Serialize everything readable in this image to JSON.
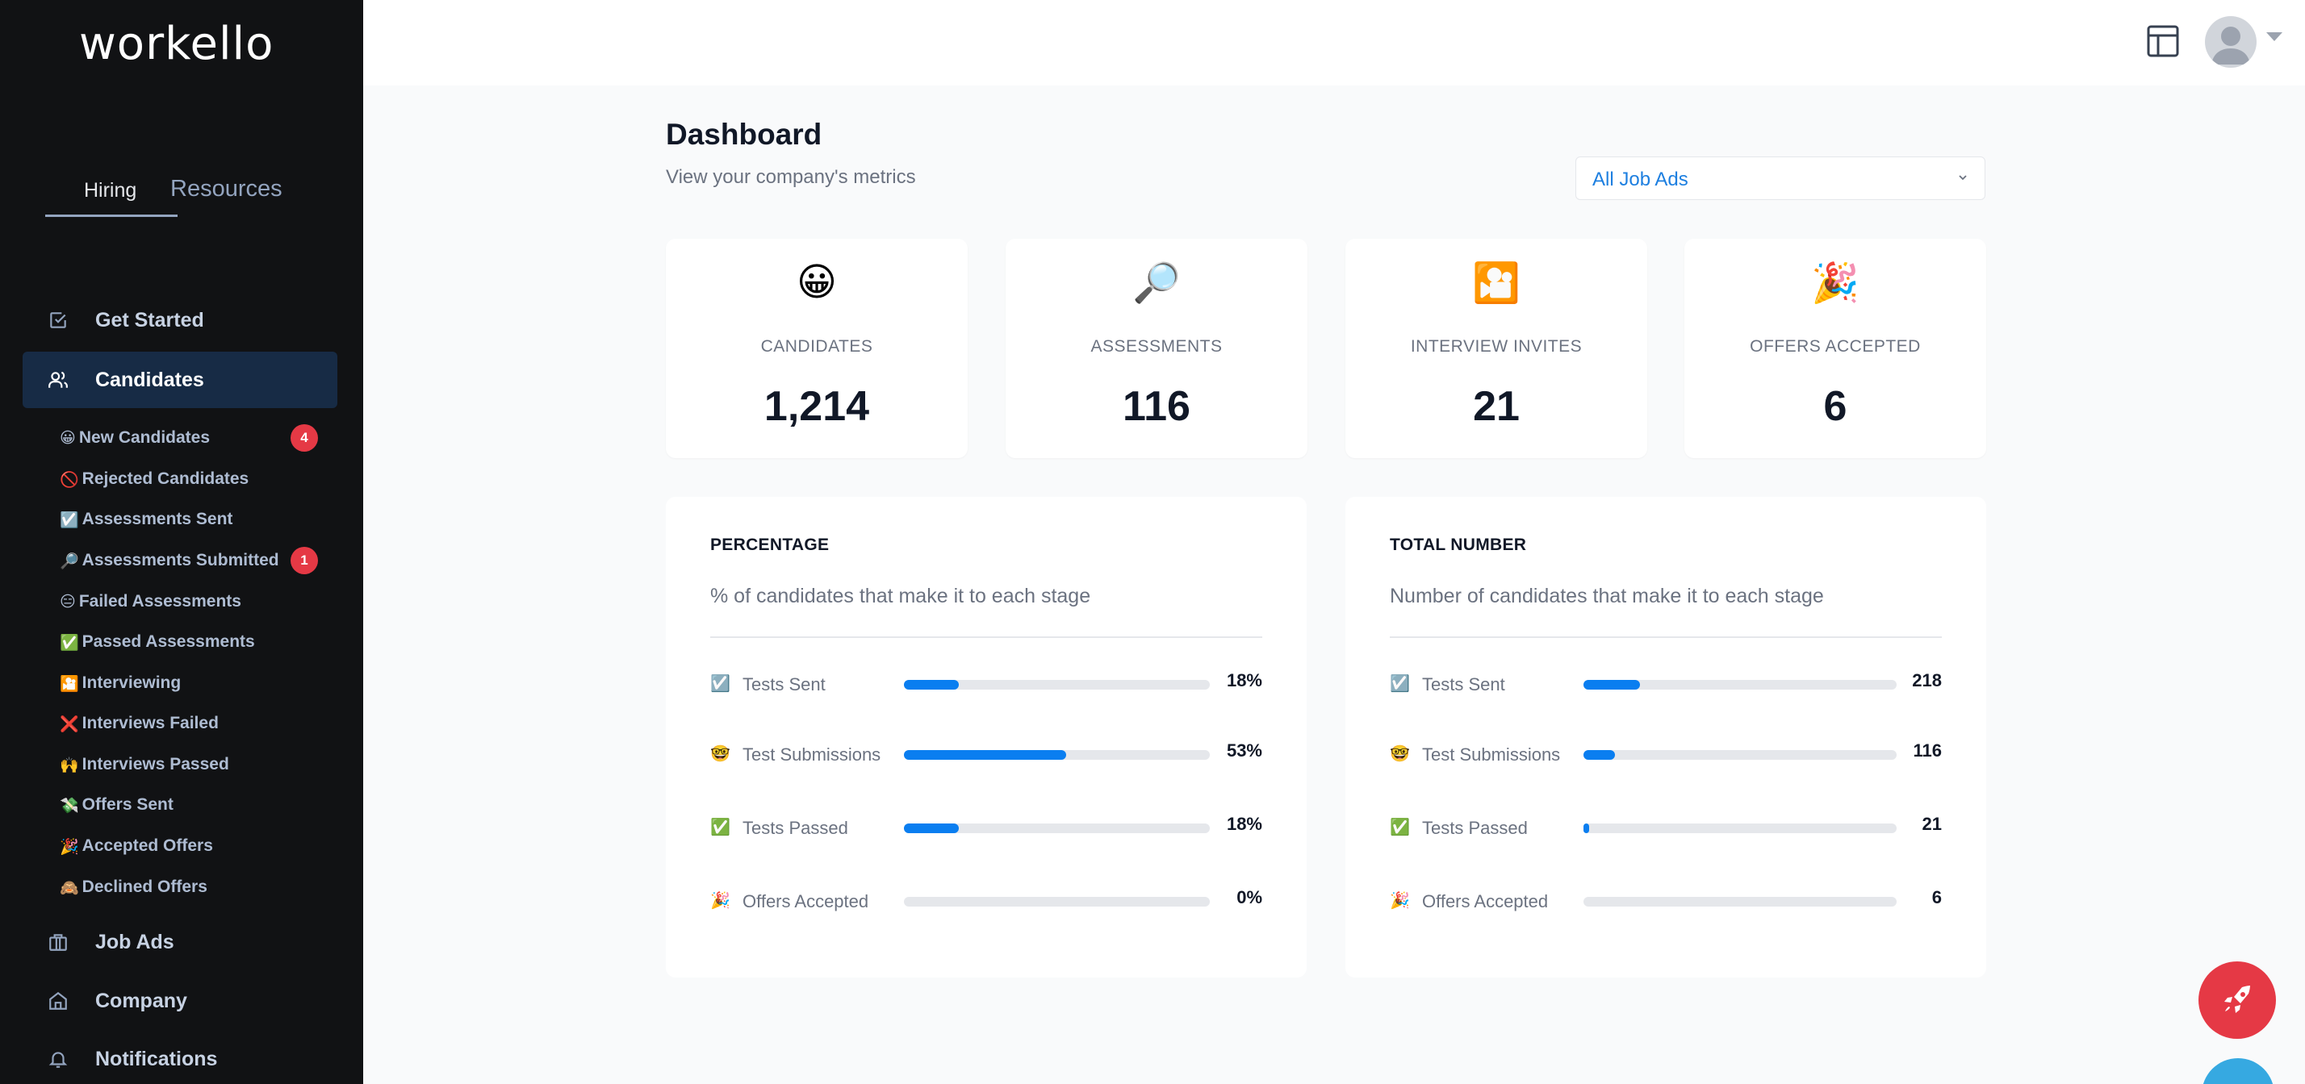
{
  "sidebar": {
    "logo": "workello",
    "tabs": {
      "hiring": "Hiring",
      "resources": "Resources"
    },
    "nav": {
      "get_started": "Get Started",
      "candidates": "Candidates",
      "job_ads": "Job Ads",
      "company": "Company",
      "notifications": "Notifications"
    },
    "candidate_items": [
      {
        "emoji": "😀",
        "label": "New Candidates",
        "badge": "4"
      },
      {
        "emoji": "🚫",
        "label": "Rejected Candidates"
      },
      {
        "emoji": "☑️",
        "label": "Assessments Sent"
      },
      {
        "emoji": "🔎",
        "label": "Assessments Submitted",
        "badge": "1"
      },
      {
        "emoji": "😑",
        "label": "Failed Assessments"
      },
      {
        "emoji": "✅",
        "label": "Passed Assessments"
      },
      {
        "emoji": "🎦",
        "label": "Interviewing"
      },
      {
        "emoji": "❌",
        "label": "Interviews Failed"
      },
      {
        "emoji": "🙌",
        "label": "Interviews Passed"
      },
      {
        "emoji": "💸",
        "label": "Offers Sent"
      },
      {
        "emoji": "🎉",
        "label": "Accepted Offers"
      },
      {
        "emoji": "🙈",
        "label": "Declined Offers"
      }
    ]
  },
  "header": {
    "title": "Dashboard",
    "subtitle": "View your company's metrics",
    "filter_value": "All Job Ads"
  },
  "stats": [
    {
      "emoji": "😀",
      "label": "CANDIDATES",
      "value": "1,214"
    },
    {
      "emoji": "🔎",
      "label": "ASSESSMENTS",
      "value": "116"
    },
    {
      "emoji": "🎦",
      "label": "INTERVIEW INVITES",
      "value": "21"
    },
    {
      "emoji": "🎉",
      "label": "OFFERS ACCEPTED",
      "value": "6"
    }
  ],
  "percentage_card": {
    "title": "PERCENTAGE",
    "subtitle": "% of candidates that make it to each stage",
    "rows": [
      {
        "emoji": "☑️",
        "label": "Tests Sent",
        "value": "18%",
        "fill": 0.18
      },
      {
        "emoji": "🤓",
        "label": "Test Submissions",
        "value": "53%",
        "fill": 0.53
      },
      {
        "emoji": "✅",
        "label": "Tests Passed",
        "value": "18%",
        "fill": 0.18
      },
      {
        "emoji": "🎉",
        "label": "Offers Accepted",
        "value": "0%",
        "fill": 0
      }
    ]
  },
  "total_card": {
    "title": "TOTAL NUMBER",
    "subtitle": "Number of candidates that make it to each stage",
    "rows": [
      {
        "emoji": "☑️",
        "label": "Tests Sent",
        "value": "218",
        "fill": 0.18
      },
      {
        "emoji": "🤓",
        "label": "Test Submissions",
        "value": "116",
        "fill": 0.1
      },
      {
        "emoji": "✅",
        "label": "Tests Passed",
        "value": "21",
        "fill": 0.017
      },
      {
        "emoji": "🎉",
        "label": "Offers Accepted",
        "value": "6",
        "fill": 0
      }
    ]
  },
  "colors": {
    "sidebar_bg": "#111214",
    "active_nav_bg": "#172b45",
    "accent": "#0a7ef0",
    "badge": "#e53945",
    "fab_rocket": "#e53945",
    "fab_chat": "#36a9e1"
  },
  "icons": {
    "get_started": "checkbox-icon",
    "candidates": "users-icon",
    "job_ads": "briefcase-icon",
    "company": "home-icon",
    "notifications": "bell-icon",
    "layout": "layout-icon",
    "fab": "rocket-icon"
  }
}
